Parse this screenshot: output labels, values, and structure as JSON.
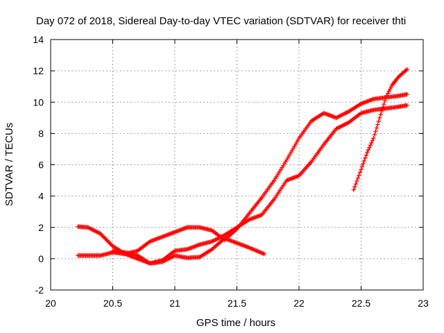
{
  "chart_data": {
    "type": "scatter",
    "title": "Day 072 of 2018, Sidereal Day-to-day VTEC variation (SDTVAR) for receiver thti",
    "xlabel": "GPS time / hours",
    "ylabel": "SDTVAR / TECUs",
    "xlim": [
      20,
      23
    ],
    "ylim": [
      -2,
      14
    ],
    "xticks": [
      20,
      20.5,
      21,
      21.5,
      22,
      22.5,
      23
    ],
    "yticks": [
      -2,
      0,
      2,
      4,
      6,
      8,
      10,
      12,
      14
    ],
    "xtick_labels": [
      "20",
      "20.5",
      "21",
      "21.5",
      "22",
      "22.5",
      "23"
    ],
    "ytick_labels": [
      "-2",
      "0",
      "2",
      "4",
      "6",
      "8",
      "10",
      "12",
      "14"
    ],
    "grid": true,
    "marker": "+",
    "color": "#ff0000",
    "series": [
      {
        "points": [
          [
            20.22,
            2.05
          ],
          [
            20.3,
            2.0
          ],
          [
            20.4,
            1.6
          ],
          [
            20.5,
            0.8
          ],
          [
            20.6,
            0.3
          ],
          [
            20.7,
            0.0
          ],
          [
            20.8,
            -0.3
          ],
          [
            20.9,
            -0.1
          ],
          [
            21.0,
            0.5
          ],
          [
            21.1,
            0.6
          ],
          [
            21.2,
            0.9
          ],
          [
            21.3,
            1.1
          ],
          [
            21.4,
            1.5
          ],
          [
            21.5,
            2.0
          ],
          [
            21.6,
            2.5
          ],
          [
            21.7,
            2.8
          ],
          [
            21.8,
            3.8
          ],
          [
            21.9,
            5.0
          ],
          [
            22.0,
            5.3
          ],
          [
            22.1,
            6.2
          ],
          [
            22.2,
            7.3
          ],
          [
            22.3,
            8.3
          ],
          [
            22.4,
            8.7
          ],
          [
            22.5,
            9.3
          ],
          [
            22.6,
            9.5
          ],
          [
            22.7,
            9.6
          ],
          [
            22.8,
            9.7
          ],
          [
            22.87,
            9.8
          ]
        ]
      },
      {
        "points": [
          [
            20.22,
            0.2
          ],
          [
            20.3,
            0.2
          ],
          [
            20.4,
            0.2
          ],
          [
            20.5,
            0.4
          ],
          [
            20.6,
            0.3
          ],
          [
            20.7,
            0.5
          ],
          [
            20.8,
            1.1
          ],
          [
            20.9,
            1.4
          ],
          [
            21.0,
            1.7
          ],
          [
            21.1,
            2.0
          ],
          [
            21.2,
            2.0
          ],
          [
            21.3,
            1.8
          ],
          [
            21.4,
            1.2
          ],
          [
            21.5,
            1.9
          ],
          [
            21.6,
            2.9
          ],
          [
            21.7,
            3.9
          ],
          [
            21.8,
            5.0
          ],
          [
            21.9,
            6.3
          ],
          [
            22.0,
            7.7
          ],
          [
            22.1,
            8.8
          ],
          [
            22.2,
            9.3
          ],
          [
            22.3,
            9.0
          ],
          [
            22.4,
            9.4
          ],
          [
            22.5,
            9.9
          ],
          [
            22.6,
            10.2
          ],
          [
            22.7,
            10.3
          ],
          [
            22.8,
            10.4
          ],
          [
            22.87,
            10.5
          ]
        ]
      },
      {
        "points": [
          [
            20.5,
            0.5
          ],
          [
            20.6,
            0.4
          ],
          [
            20.7,
            0.2
          ],
          [
            20.8,
            -0.3
          ],
          [
            20.9,
            -0.2
          ],
          [
            21.0,
            0.2
          ],
          [
            21.1,
            0.05
          ],
          [
            21.2,
            0.1
          ],
          [
            21.3,
            0.6
          ],
          [
            21.4,
            1.3
          ],
          [
            21.5,
            1.0
          ],
          [
            21.6,
            0.7
          ],
          [
            21.72,
            0.3
          ]
        ]
      },
      {
        "points": [
          [
            22.44,
            4.4
          ],
          [
            22.5,
            5.7
          ],
          [
            22.55,
            6.8
          ],
          [
            22.6,
            7.7
          ],
          [
            22.65,
            9.0
          ],
          [
            22.7,
            10.3
          ],
          [
            22.75,
            11.1
          ],
          [
            22.8,
            11.6
          ],
          [
            22.87,
            12.1
          ]
        ]
      }
    ]
  }
}
